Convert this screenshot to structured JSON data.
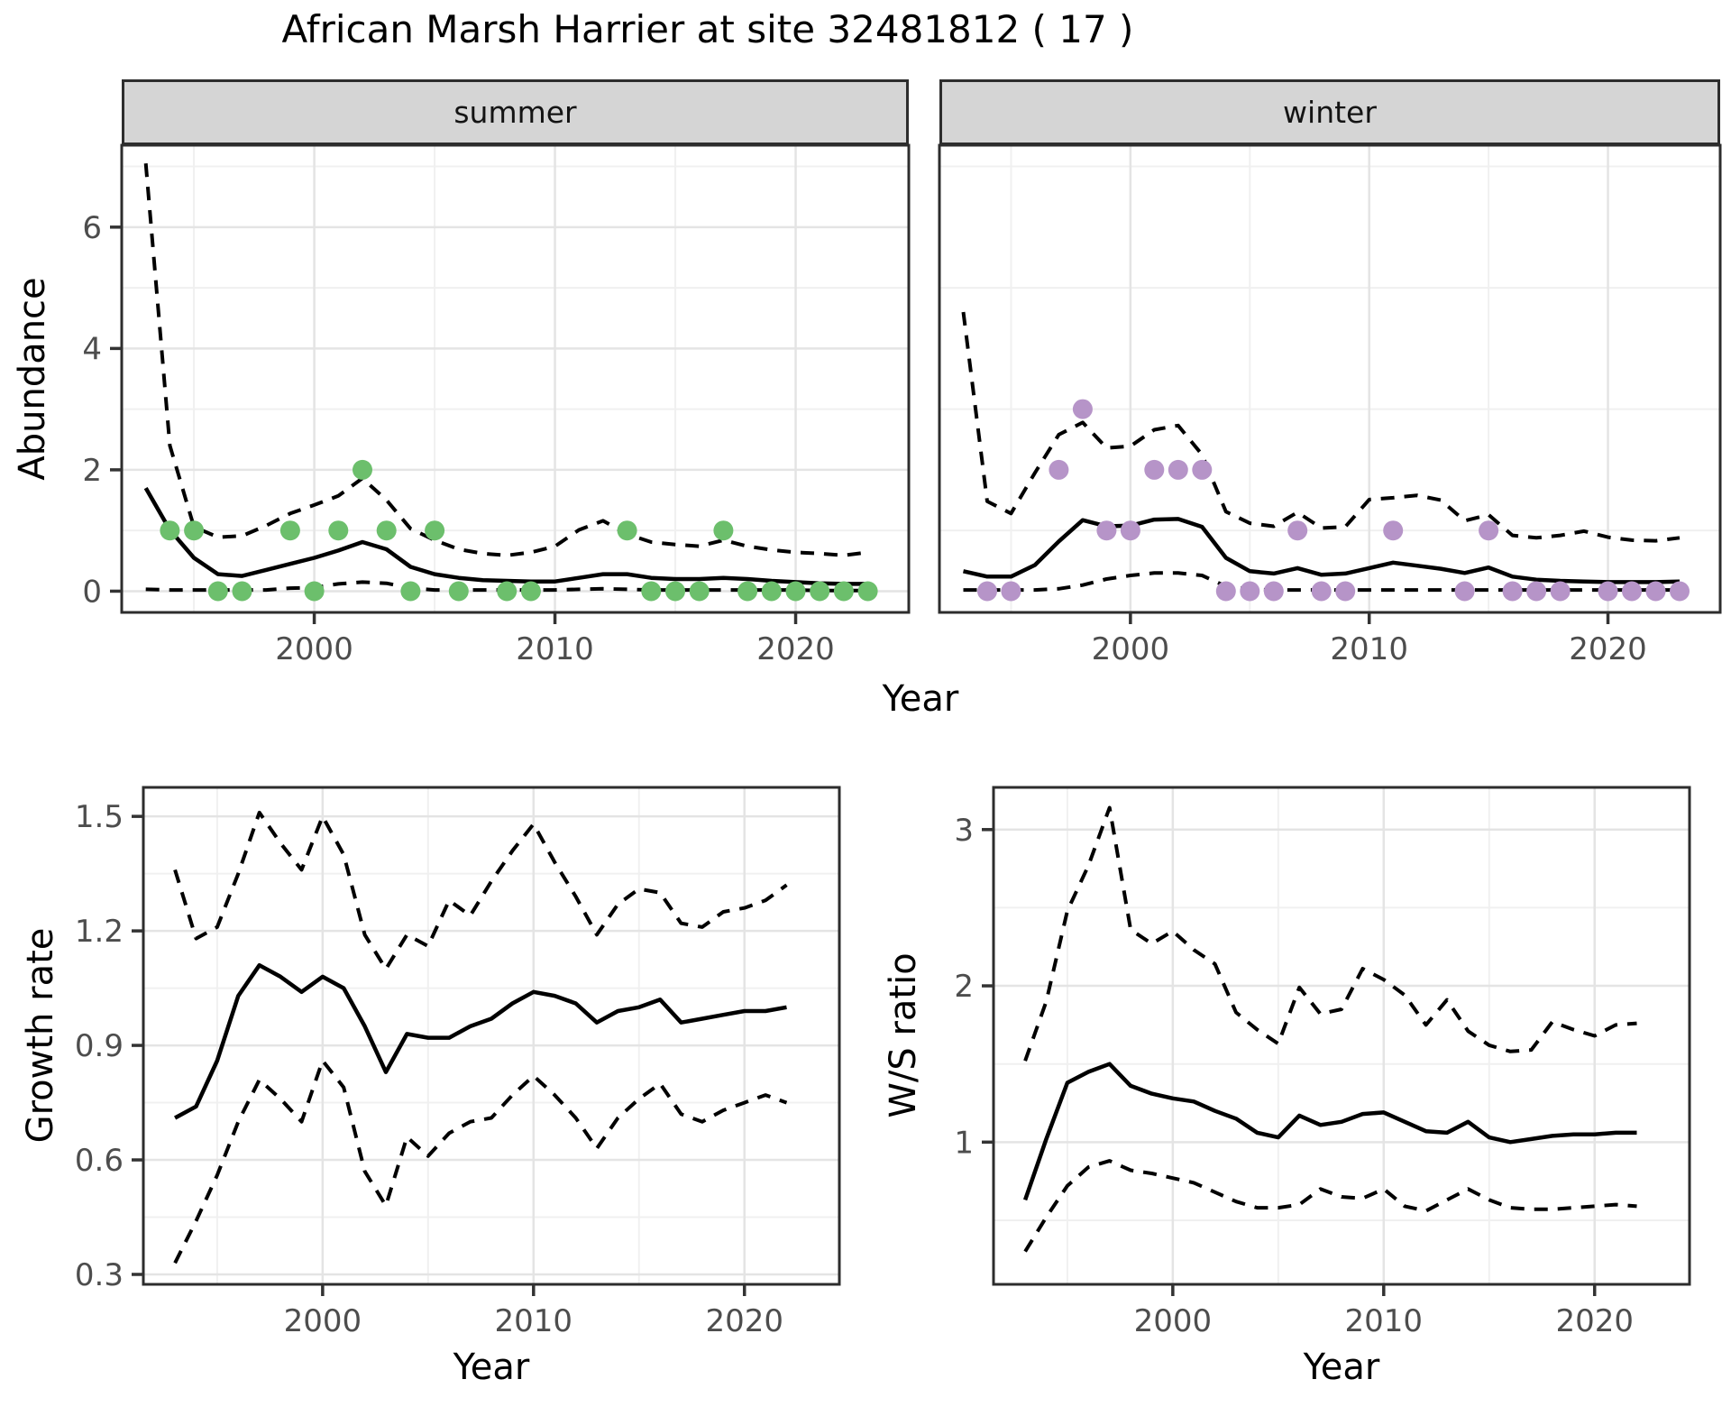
{
  "title": "African Marsh Harrier at site 32481812 ( 17 )",
  "colors": {
    "line": "#000000",
    "summer_points": "#6cbf6c",
    "winter_points": "#b694c8",
    "grid_major": "#e4e4e4",
    "grid_minor": "#f0f0f0",
    "panel_border": "#2d2d2d",
    "strip_fill": "#d5d5d5",
    "tick_text": "#4d4d4d",
    "axis_text": "#000000"
  },
  "chart_data": [
    {
      "id": "abundance-summer",
      "type": "line",
      "facet": "summer",
      "xlabel": "Year",
      "ylabel": "Abundance",
      "x": [
        1993,
        1994,
        1995,
        1996,
        1997,
        1998,
        1999,
        2000,
        2001,
        2002,
        2003,
        2004,
        2005,
        2006,
        2007,
        2008,
        2009,
        2010,
        2011,
        2012,
        2013,
        2014,
        2015,
        2016,
        2017,
        2018,
        2019,
        2020,
        2021,
        2022,
        2023
      ],
      "series": [
        {
          "name": "median",
          "style": "solid",
          "values": [
            1.7,
            1.01,
            0.55,
            0.28,
            0.25,
            0.35,
            0.45,
            0.55,
            0.67,
            0.81,
            0.69,
            0.4,
            0.28,
            0.22,
            0.18,
            0.17,
            0.16,
            0.16,
            0.22,
            0.28,
            0.28,
            0.22,
            0.2,
            0.2,
            0.22,
            0.2,
            0.17,
            0.15,
            0.13,
            0.12,
            0.12
          ]
        },
        {
          "name": "upper",
          "style": "dashed",
          "values": [
            7.05,
            2.4,
            1.06,
            0.89,
            0.91,
            1.08,
            1.28,
            1.42,
            1.57,
            1.86,
            1.5,
            1.03,
            0.84,
            0.69,
            0.62,
            0.59,
            0.64,
            0.74,
            1.01,
            1.16,
            0.94,
            0.81,
            0.77,
            0.74,
            0.84,
            0.74,
            0.68,
            0.64,
            0.62,
            0.59,
            0.64
          ]
        },
        {
          "name": "lower",
          "style": "dashed",
          "values": [
            0.03,
            0.02,
            0.02,
            0.02,
            0.02,
            0.02,
            0.05,
            0.06,
            0.12,
            0.15,
            0.13,
            0.05,
            0.02,
            0.02,
            0.02,
            0.02,
            0.02,
            0.02,
            0.03,
            0.04,
            0.03,
            0.02,
            0.02,
            0.02,
            0.02,
            0.02,
            0.02,
            0.02,
            0.01,
            0.01,
            0.01
          ]
        }
      ],
      "points": {
        "name": "observed-counts",
        "color": "#6cbf6c",
        "x": [
          1994,
          1995,
          1996,
          1997,
          1999,
          2000,
          2001,
          2002,
          2003,
          2004,
          2005,
          2006,
          2008,
          2009,
          2013,
          2014,
          2015,
          2016,
          2017,
          2018,
          2019,
          2020,
          2021,
          2022,
          2023
        ],
        "y": [
          1,
          1,
          0,
          0,
          1,
          0,
          1,
          2,
          1,
          0,
          1,
          0,
          0,
          0,
          1,
          0,
          0,
          0,
          1,
          0,
          0,
          0,
          0,
          0,
          0
        ]
      },
      "xlim": [
        1992,
        2024.7
      ],
      "ylim": [
        -0.35,
        7.35
      ],
      "xticks": [
        2000,
        2010,
        2020
      ],
      "xtick_labels": [
        "2000",
        "2010",
        "2020"
      ],
      "yticks": [
        0,
        2,
        4,
        6
      ],
      "ytick_labels": [
        "0",
        "2",
        "4",
        "6"
      ],
      "xminor": [
        1995,
        2005,
        2015
      ],
      "yminor": [
        1,
        3,
        5,
        7
      ],
      "grid": true,
      "legend": "none"
    },
    {
      "id": "abundance-winter",
      "type": "line",
      "facet": "winter",
      "xlabel": "Year",
      "ylabel": "Abundance",
      "x": [
        1993,
        1994,
        1995,
        1996,
        1997,
        1998,
        1999,
        2000,
        2001,
        2002,
        2003,
        2004,
        2005,
        2006,
        2007,
        2008,
        2009,
        2010,
        2011,
        2012,
        2013,
        2014,
        2015,
        2016,
        2017,
        2018,
        2019,
        2020,
        2021,
        2022,
        2023
      ],
      "series": [
        {
          "name": "median",
          "style": "solid",
          "values": [
            0.33,
            0.24,
            0.24,
            0.43,
            0.82,
            1.17,
            1.07,
            1.08,
            1.18,
            1.19,
            1.06,
            0.55,
            0.33,
            0.29,
            0.38,
            0.27,
            0.29,
            0.38,
            0.47,
            0.42,
            0.37,
            0.3,
            0.39,
            0.24,
            0.19,
            0.17,
            0.16,
            0.15,
            0.15,
            0.15,
            0.16
          ]
        },
        {
          "name": "upper",
          "style": "dashed",
          "values": [
            4.6,
            1.48,
            1.28,
            1.95,
            2.58,
            2.78,
            2.36,
            2.39,
            2.66,
            2.73,
            2.25,
            1.31,
            1.12,
            1.07,
            1.3,
            1.04,
            1.06,
            1.51,
            1.54,
            1.58,
            1.5,
            1.16,
            1.26,
            0.92,
            0.88,
            0.92,
            0.99,
            0.89,
            0.84,
            0.83,
            0.88
          ]
        },
        {
          "name": "lower",
          "style": "dashed",
          "values": [
            0.02,
            0.02,
            0.02,
            0.02,
            0.04,
            0.1,
            0.2,
            0.26,
            0.3,
            0.3,
            0.26,
            0.08,
            0.03,
            0.02,
            0.02,
            0.02,
            0.02,
            0.02,
            0.02,
            0.02,
            0.02,
            0.02,
            0.02,
            0.02,
            0.02,
            0.02,
            0.02,
            0.02,
            0.02,
            0.02,
            0.02
          ]
        }
      ],
      "points": {
        "name": "observed-counts",
        "color": "#b694c8",
        "x": [
          1994,
          1995,
          1997,
          1998,
          1999,
          2000,
          2001,
          2002,
          2003,
          2004,
          2005,
          2006,
          2007,
          2008,
          2009,
          2011,
          2014,
          2015,
          2016,
          2017,
          2018,
          2020,
          2021,
          2022,
          2023
        ],
        "y": [
          0,
          0,
          2,
          3,
          1,
          1,
          2,
          2,
          2,
          0,
          0,
          0,
          1,
          0,
          0,
          1,
          0,
          1,
          0,
          0,
          0,
          0,
          0,
          0,
          0
        ]
      },
      "xlim": [
        1992,
        2024.7
      ],
      "ylim": [
        -0.35,
        7.35
      ],
      "xticks": [
        2000,
        2010,
        2020
      ],
      "xtick_labels": [
        "2000",
        "2010",
        "2020"
      ],
      "yticks": [],
      "ytick_labels": [],
      "xminor": [
        1995,
        2005,
        2015
      ],
      "yminor": [
        1,
        3,
        5,
        7
      ],
      "grid": true,
      "legend": "none"
    },
    {
      "id": "growth-rate",
      "type": "line",
      "facet": "",
      "xlabel": "Year",
      "ylabel": "Growth rate",
      "x": [
        1993,
        1994,
        1995,
        1996,
        1997,
        1998,
        1999,
        2000,
        2001,
        2002,
        2003,
        2004,
        2005,
        2006,
        2007,
        2008,
        2009,
        2010,
        2011,
        2012,
        2013,
        2014,
        2015,
        2016,
        2017,
        2018,
        2019,
        2020,
        2021,
        2022
      ],
      "series": [
        {
          "name": "median",
          "style": "solid",
          "values": [
            0.71,
            0.74,
            0.86,
            1.03,
            1.11,
            1.08,
            1.04,
            1.08,
            1.05,
            0.95,
            0.83,
            0.93,
            0.92,
            0.92,
            0.95,
            0.97,
            1.01,
            1.04,
            1.03,
            1.01,
            0.96,
            0.99,
            1.0,
            1.02,
            0.96,
            0.97,
            0.98,
            0.99,
            0.99,
            1.0
          ]
        },
        {
          "name": "upper",
          "style": "dashed",
          "values": [
            1.36,
            1.18,
            1.21,
            1.35,
            1.51,
            1.43,
            1.36,
            1.5,
            1.4,
            1.19,
            1.1,
            1.19,
            1.16,
            1.28,
            1.24,
            1.33,
            1.41,
            1.48,
            1.38,
            1.29,
            1.19,
            1.27,
            1.31,
            1.3,
            1.22,
            1.21,
            1.25,
            1.26,
            1.28,
            1.32
          ]
        },
        {
          "name": "lower",
          "style": "dashed",
          "values": [
            0.33,
            0.44,
            0.56,
            0.7,
            0.81,
            0.76,
            0.7,
            0.86,
            0.79,
            0.57,
            0.48,
            0.66,
            0.61,
            0.67,
            0.7,
            0.71,
            0.77,
            0.82,
            0.77,
            0.71,
            0.63,
            0.71,
            0.76,
            0.8,
            0.72,
            0.7,
            0.73,
            0.75,
            0.77,
            0.75
          ]
        }
      ],
      "points": null,
      "xlim": [
        1991.5,
        2024.5
      ],
      "ylim": [
        0.274,
        1.576
      ],
      "xticks": [
        2000,
        2010,
        2020
      ],
      "xtick_labels": [
        "2000",
        "2010",
        "2020"
      ],
      "yticks": [
        0.3,
        0.6,
        0.9,
        1.2,
        1.5
      ],
      "ytick_labels": [
        "0.3",
        "0.6",
        "0.9",
        "1.2",
        "1.5"
      ],
      "xminor": [
        1995,
        2005,
        2015
      ],
      "yminor": [
        0.45,
        0.75,
        1.05,
        1.35
      ],
      "grid": true,
      "legend": "none"
    },
    {
      "id": "ws-ratio",
      "type": "line",
      "facet": "",
      "xlabel": "Year",
      "ylabel": "W/S ratio",
      "x": [
        1993,
        1994,
        1995,
        1996,
        1997,
        1998,
        1999,
        2000,
        2001,
        2002,
        2003,
        2004,
        2005,
        2006,
        2007,
        2008,
        2009,
        2010,
        2011,
        2012,
        2013,
        2014,
        2015,
        2016,
        2017,
        2018,
        2019,
        2020,
        2021,
        2022
      ],
      "series": [
        {
          "name": "median",
          "style": "solid",
          "values": [
            0.63,
            1.02,
            1.38,
            1.45,
            1.5,
            1.36,
            1.31,
            1.28,
            1.26,
            1.2,
            1.15,
            1.06,
            1.03,
            1.17,
            1.11,
            1.13,
            1.18,
            1.19,
            1.13,
            1.07,
            1.06,
            1.13,
            1.03,
            1.0,
            1.02,
            1.04,
            1.05,
            1.05,
            1.06,
            1.06
          ]
        },
        {
          "name": "upper",
          "style": "dashed",
          "values": [
            1.52,
            1.9,
            2.48,
            2.77,
            3.14,
            2.36,
            2.27,
            2.35,
            2.23,
            2.14,
            1.83,
            1.72,
            1.63,
            1.99,
            1.82,
            1.85,
            2.11,
            2.04,
            1.94,
            1.75,
            1.91,
            1.71,
            1.62,
            1.58,
            1.59,
            1.77,
            1.72,
            1.68,
            1.75,
            1.76
          ]
        },
        {
          "name": "lower",
          "style": "dashed",
          "values": [
            0.3,
            0.52,
            0.72,
            0.84,
            0.88,
            0.82,
            0.8,
            0.77,
            0.74,
            0.68,
            0.62,
            0.58,
            0.58,
            0.6,
            0.7,
            0.65,
            0.64,
            0.7,
            0.59,
            0.56,
            0.63,
            0.7,
            0.63,
            0.58,
            0.57,
            0.57,
            0.58,
            0.59,
            0.6,
            0.59
          ]
        }
      ],
      "points": null,
      "xlim": [
        1991.5,
        2024.5
      ],
      "ylim": [
        0.09,
        3.27
      ],
      "xticks": [
        2000,
        2010,
        2020
      ],
      "xtick_labels": [
        "2000",
        "2010",
        "2020"
      ],
      "yticks": [
        1,
        2,
        3
      ],
      "ytick_labels": [
        "1",
        "2",
        "3"
      ],
      "xminor": [
        1995,
        2005,
        2015
      ],
      "yminor": [
        0.5,
        1.5,
        2.5
      ],
      "grid": true,
      "legend": "none"
    }
  ]
}
